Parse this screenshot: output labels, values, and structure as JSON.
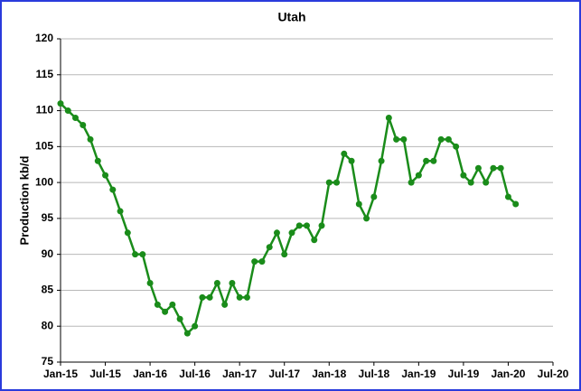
{
  "chart_data": {
    "type": "line",
    "title": "Utah",
    "y_label": "Production kb/d",
    "x": [
      "2015-01",
      "2015-02",
      "2015-03",
      "2015-04",
      "2015-05",
      "2015-06",
      "2015-07",
      "2015-08",
      "2015-09",
      "2015-10",
      "2015-11",
      "2015-12",
      "2016-01",
      "2016-02",
      "2016-03",
      "2016-04",
      "2016-05",
      "2016-06",
      "2016-07",
      "2016-08",
      "2016-09",
      "2016-10",
      "2016-11",
      "2016-12",
      "2017-01",
      "2017-02",
      "2017-03",
      "2017-04",
      "2017-05",
      "2017-06",
      "2017-07",
      "2017-08",
      "2017-09",
      "2017-10",
      "2017-11",
      "2017-12",
      "2018-01",
      "2018-02",
      "2018-03",
      "2018-04",
      "2018-05",
      "2018-06",
      "2018-07",
      "2018-08",
      "2018-09",
      "2018-10",
      "2018-11",
      "2018-12",
      "2019-01",
      "2019-02",
      "2019-03",
      "2019-04",
      "2019-05",
      "2019-06",
      "2019-07",
      "2019-08",
      "2019-09",
      "2019-10",
      "2019-11",
      "2019-12",
      "2020-01",
      "2020-02"
    ],
    "series": [
      {
        "name": "Utah",
        "color": "#1a8c1a",
        "values": [
          111,
          110,
          109,
          108,
          106,
          103,
          101,
          99,
          96,
          93,
          90,
          90,
          86,
          83,
          82,
          83,
          81,
          79,
          80,
          84,
          84,
          86,
          83,
          86,
          84,
          84,
          89,
          89,
          91,
          93,
          90,
          93,
          94,
          94,
          92,
          94,
          100,
          100,
          104,
          103,
          97,
          95,
          98,
          103,
          109,
          106,
          106,
          100,
          101,
          103,
          103,
          106,
          106,
          105,
          101,
          100,
          102,
          100,
          102,
          102,
          98,
          97
        ]
      }
    ],
    "xlim": [
      "2015-01",
      "2020-07"
    ],
    "xticks": [
      {
        "value": "2015-01",
        "label": "Jan-15"
      },
      {
        "value": "2015-07",
        "label": "Jul-15"
      },
      {
        "value": "2016-01",
        "label": "Jan-16"
      },
      {
        "value": "2016-07",
        "label": "Jul-16"
      },
      {
        "value": "2017-01",
        "label": "Jan-17"
      },
      {
        "value": "2017-07",
        "label": "Jul-17"
      },
      {
        "value": "2018-01",
        "label": "Jan-18"
      },
      {
        "value": "2018-07",
        "label": "Jul-18"
      },
      {
        "value": "2019-01",
        "label": "Jan-19"
      },
      {
        "value": "2019-07",
        "label": "Jul-19"
      },
      {
        "value": "2020-01",
        "label": "Jan-20"
      },
      {
        "value": "2020-07",
        "label": "Jul-20"
      }
    ],
    "ylim": [
      75,
      120
    ],
    "yticks": [
      75,
      80,
      85,
      90,
      95,
      100,
      105,
      110,
      115,
      120
    ],
    "grid": true
  }
}
